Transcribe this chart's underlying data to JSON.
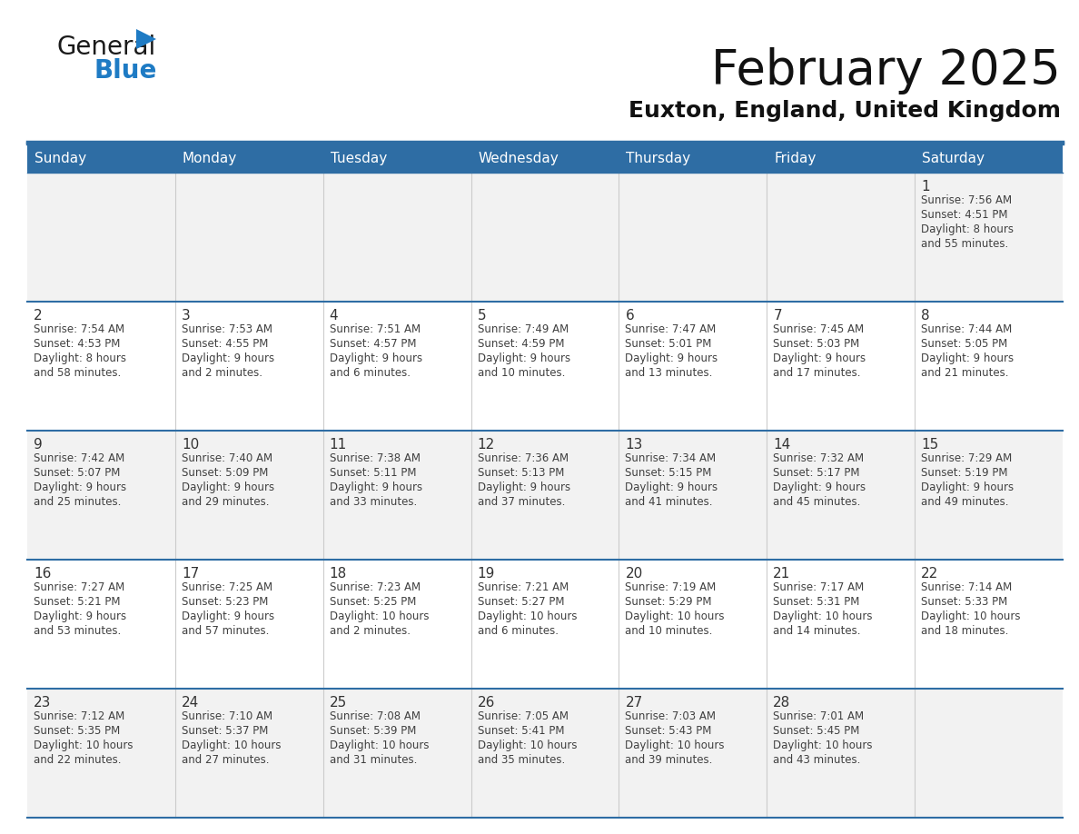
{
  "title": "February 2025",
  "subtitle": "Euxton, England, United Kingdom",
  "header_bg": "#2E6DA4",
  "header_text_color": "#FFFFFF",
  "cell_bg_odd": "#F2F2F2",
  "cell_bg_even": "#FFFFFF",
  "border_color": "#2E6DA4",
  "day_names": [
    "Sunday",
    "Monday",
    "Tuesday",
    "Wednesday",
    "Thursday",
    "Friday",
    "Saturday"
  ],
  "text_color": "#404040",
  "day_number_color": "#333333",
  "days": [
    {
      "date": 1,
      "col": 6,
      "row": 0,
      "sunrise": "7:56 AM",
      "sunset": "4:51 PM",
      "daylight_h": "8 hours",
      "daylight_m": "55 minutes."
    },
    {
      "date": 2,
      "col": 0,
      "row": 1,
      "sunrise": "7:54 AM",
      "sunset": "4:53 PM",
      "daylight_h": "8 hours",
      "daylight_m": "58 minutes."
    },
    {
      "date": 3,
      "col": 1,
      "row": 1,
      "sunrise": "7:53 AM",
      "sunset": "4:55 PM",
      "daylight_h": "9 hours",
      "daylight_m": "2 minutes."
    },
    {
      "date": 4,
      "col": 2,
      "row": 1,
      "sunrise": "7:51 AM",
      "sunset": "4:57 PM",
      "daylight_h": "9 hours",
      "daylight_m": "6 minutes."
    },
    {
      "date": 5,
      "col": 3,
      "row": 1,
      "sunrise": "7:49 AM",
      "sunset": "4:59 PM",
      "daylight_h": "9 hours",
      "daylight_m": "10 minutes."
    },
    {
      "date": 6,
      "col": 4,
      "row": 1,
      "sunrise": "7:47 AM",
      "sunset": "5:01 PM",
      "daylight_h": "9 hours",
      "daylight_m": "13 minutes."
    },
    {
      "date": 7,
      "col": 5,
      "row": 1,
      "sunrise": "7:45 AM",
      "sunset": "5:03 PM",
      "daylight_h": "9 hours",
      "daylight_m": "17 minutes."
    },
    {
      "date": 8,
      "col": 6,
      "row": 1,
      "sunrise": "7:44 AM",
      "sunset": "5:05 PM",
      "daylight_h": "9 hours",
      "daylight_m": "21 minutes."
    },
    {
      "date": 9,
      "col": 0,
      "row": 2,
      "sunrise": "7:42 AM",
      "sunset": "5:07 PM",
      "daylight_h": "9 hours",
      "daylight_m": "25 minutes."
    },
    {
      "date": 10,
      "col": 1,
      "row": 2,
      "sunrise": "7:40 AM",
      "sunset": "5:09 PM",
      "daylight_h": "9 hours",
      "daylight_m": "29 minutes."
    },
    {
      "date": 11,
      "col": 2,
      "row": 2,
      "sunrise": "7:38 AM",
      "sunset": "5:11 PM",
      "daylight_h": "9 hours",
      "daylight_m": "33 minutes."
    },
    {
      "date": 12,
      "col": 3,
      "row": 2,
      "sunrise": "7:36 AM",
      "sunset": "5:13 PM",
      "daylight_h": "9 hours",
      "daylight_m": "37 minutes."
    },
    {
      "date": 13,
      "col": 4,
      "row": 2,
      "sunrise": "7:34 AM",
      "sunset": "5:15 PM",
      "daylight_h": "9 hours",
      "daylight_m": "41 minutes."
    },
    {
      "date": 14,
      "col": 5,
      "row": 2,
      "sunrise": "7:32 AM",
      "sunset": "5:17 PM",
      "daylight_h": "9 hours",
      "daylight_m": "45 minutes."
    },
    {
      "date": 15,
      "col": 6,
      "row": 2,
      "sunrise": "7:29 AM",
      "sunset": "5:19 PM",
      "daylight_h": "9 hours",
      "daylight_m": "49 minutes."
    },
    {
      "date": 16,
      "col": 0,
      "row": 3,
      "sunrise": "7:27 AM",
      "sunset": "5:21 PM",
      "daylight_h": "9 hours",
      "daylight_m": "53 minutes."
    },
    {
      "date": 17,
      "col": 1,
      "row": 3,
      "sunrise": "7:25 AM",
      "sunset": "5:23 PM",
      "daylight_h": "9 hours",
      "daylight_m": "57 minutes."
    },
    {
      "date": 18,
      "col": 2,
      "row": 3,
      "sunrise": "7:23 AM",
      "sunset": "5:25 PM",
      "daylight_h": "10 hours",
      "daylight_m": "2 minutes."
    },
    {
      "date": 19,
      "col": 3,
      "row": 3,
      "sunrise": "7:21 AM",
      "sunset": "5:27 PM",
      "daylight_h": "10 hours",
      "daylight_m": "6 minutes."
    },
    {
      "date": 20,
      "col": 4,
      "row": 3,
      "sunrise": "7:19 AM",
      "sunset": "5:29 PM",
      "daylight_h": "10 hours",
      "daylight_m": "10 minutes."
    },
    {
      "date": 21,
      "col": 5,
      "row": 3,
      "sunrise": "7:17 AM",
      "sunset": "5:31 PM",
      "daylight_h": "10 hours",
      "daylight_m": "14 minutes."
    },
    {
      "date": 22,
      "col": 6,
      "row": 3,
      "sunrise": "7:14 AM",
      "sunset": "5:33 PM",
      "daylight_h": "10 hours",
      "daylight_m": "18 minutes."
    },
    {
      "date": 23,
      "col": 0,
      "row": 4,
      "sunrise": "7:12 AM",
      "sunset": "5:35 PM",
      "daylight_h": "10 hours",
      "daylight_m": "22 minutes."
    },
    {
      "date": 24,
      "col": 1,
      "row": 4,
      "sunrise": "7:10 AM",
      "sunset": "5:37 PM",
      "daylight_h": "10 hours",
      "daylight_m": "27 minutes."
    },
    {
      "date": 25,
      "col": 2,
      "row": 4,
      "sunrise": "7:08 AM",
      "sunset": "5:39 PM",
      "daylight_h": "10 hours",
      "daylight_m": "31 minutes."
    },
    {
      "date": 26,
      "col": 3,
      "row": 4,
      "sunrise": "7:05 AM",
      "sunset": "5:41 PM",
      "daylight_h": "10 hours",
      "daylight_m": "35 minutes."
    },
    {
      "date": 27,
      "col": 4,
      "row": 4,
      "sunrise": "7:03 AM",
      "sunset": "5:43 PM",
      "daylight_h": "10 hours",
      "daylight_m": "39 minutes."
    },
    {
      "date": 28,
      "col": 5,
      "row": 4,
      "sunrise": "7:01 AM",
      "sunset": "5:45 PM",
      "daylight_h": "10 hours",
      "daylight_m": "43 minutes."
    }
  ],
  "num_rows": 5,
  "logo_dark_color": "#1a1a1a",
  "logo_blue_color": "#1E7BC4"
}
